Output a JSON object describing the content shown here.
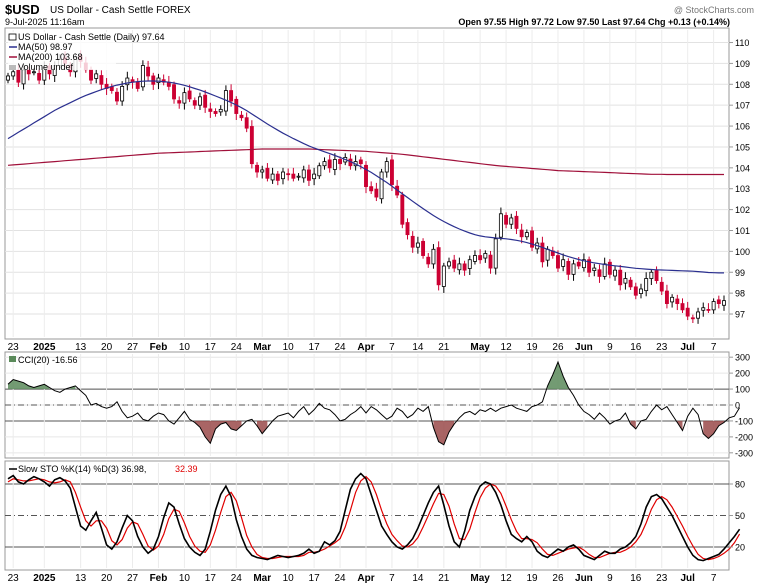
{
  "header": {
    "ticker": "$USD",
    "name": "US Dollar - Cash Settle FOREX",
    "datetime": "9-Jul-2025 11:16am",
    "watermark": "@ StockCharts.com",
    "quote": "Open 97.55  High 97.72  Low 97.50  Last 97.64  Chg +0.13 (+0.14%)"
  },
  "colors": {
    "up": "#000000",
    "down": "#cc0033",
    "ma50": "#2a2f8f",
    "ma200": "#a0103a",
    "cci_pos": "#5a8a5a",
    "cci_neg": "#9a4a4a",
    "sto_k": "#000000",
    "sto_d": "#e00000"
  },
  "chart_data": [
    {
      "type": "candlestick",
      "legend": {
        "main": "US Dollar - Cash Settle (Daily) 97.64",
        "ma50": "MA(50) 98.97",
        "ma200": "MA(200) 103.68",
        "volume": "Volume undef"
      },
      "ylim": [
        95.9,
        110.6
      ],
      "yticks": [
        97,
        98,
        99,
        100,
        101,
        102,
        103,
        104,
        105,
        106,
        107,
        108,
        109,
        110
      ],
      "x_labels": [
        "23",
        "2025",
        "13",
        "20",
        "27",
        "Feb",
        "10",
        "17",
        "24",
        "Mar",
        "10",
        "17",
        "24",
        "Apr",
        "7",
        "14",
        "21",
        "May",
        "12",
        "19",
        "26",
        "Jun",
        "9",
        "16",
        "23",
        "Jul",
        "7"
      ],
      "x_label_index": [
        1,
        7,
        14,
        19,
        24,
        29,
        34,
        39,
        44,
        49,
        54,
        59,
        64,
        69,
        74,
        79,
        84,
        91,
        96,
        101,
        106,
        111,
        116,
        121,
        126,
        131,
        136
      ],
      "close": [
        108.4,
        108.6,
        108.1,
        108.7,
        108.5,
        108.6,
        108.2,
        108.8,
        108.5,
        108.9,
        109.2,
        109.0,
        108.6,
        109.3,
        109.1,
        108.7,
        108.2,
        108.5,
        108.0,
        107.8,
        107.7,
        107.2,
        107.9,
        108.3,
        108.1,
        107.8,
        108.9,
        108.4,
        108.0,
        108.3,
        108.1,
        107.9,
        107.3,
        107.1,
        107.6,
        107.3,
        107.0,
        107.4,
        106.9,
        106.7,
        106.6,
        106.8,
        107.7,
        107.2,
        106.6,
        106.4,
        105.9,
        104.2,
        103.8,
        103.9,
        103.5,
        103.7,
        103.4,
        103.8,
        103.7,
        103.5,
        103.6,
        103.9,
        103.4,
        103.7,
        104.1,
        104.3,
        104.0,
        104.4,
        104.2,
        104.5,
        104.1,
        104.3,
        104.2,
        103.1,
        102.9,
        102.6,
        103.8,
        104.3,
        103.2,
        102.7,
        101.3,
        100.8,
        100.2,
        100.4,
        99.8,
        99.4,
        100.1,
        98.4,
        99.3,
        99.5,
        99.2,
        99.4,
        99.1,
        99.6,
        99.8,
        99.6,
        99.9,
        99.2,
        100.6,
        101.8,
        101.3,
        101.6,
        101.1,
        100.7,
        100.9,
        100.2,
        100.4,
        99.5,
        100.1,
        99.8,
        99.2,
        99.6,
        98.9,
        99.4,
        99.3,
        99.6,
        99.0,
        99.2,
        98.8,
        99.4,
        98.9,
        99.1,
        98.4,
        98.7,
        98.3,
        97.9,
        98.2,
        98.7,
        99.0,
        98.6,
        98.1,
        97.5,
        97.8,
        97.5,
        97.2,
        96.9,
        96.8,
        97.1,
        97.3,
        97.2,
        97.6,
        97.5,
        97.64
      ],
      "ma50": [
        105.4,
        105.55,
        105.7,
        105.85,
        106.0,
        106.15,
        106.3,
        106.45,
        106.6,
        106.75,
        106.88,
        107.0,
        107.12,
        107.24,
        107.36,
        107.47,
        107.56,
        107.65,
        107.74,
        107.82,
        107.9,
        107.96,
        108.01,
        108.06,
        108.1,
        108.13,
        108.15,
        108.16,
        108.16,
        108.15,
        108.13,
        108.1,
        108.06,
        108.01,
        107.95,
        107.88,
        107.8,
        107.72,
        107.63,
        107.54,
        107.44,
        107.34,
        107.24,
        107.13,
        107.01,
        106.88,
        106.74,
        106.58,
        106.42,
        106.26,
        106.1,
        105.95,
        105.8,
        105.66,
        105.53,
        105.4,
        105.28,
        105.16,
        105.05,
        104.95,
        104.86,
        104.77,
        104.68,
        104.59,
        104.5,
        104.4,
        104.3,
        104.18,
        104.06,
        103.92,
        103.78,
        103.62,
        103.46,
        103.3,
        103.12,
        102.94,
        102.76,
        102.58,
        102.4,
        102.22,
        102.05,
        101.88,
        101.72,
        101.57,
        101.43,
        101.3,
        101.18,
        101.07,
        100.97,
        100.88,
        100.8,
        100.74,
        100.7,
        100.67,
        100.64,
        100.62,
        100.6,
        100.57,
        100.53,
        100.48,
        100.42,
        100.35,
        100.27,
        100.19,
        100.1,
        100.01,
        99.92,
        99.83,
        99.75,
        99.68,
        99.61,
        99.55,
        99.5,
        99.45,
        99.41,
        99.37,
        99.34,
        99.31,
        99.28,
        99.25,
        99.22,
        99.19,
        99.17,
        99.15,
        99.13,
        99.12,
        99.11,
        99.1,
        99.09,
        99.08,
        99.07,
        99.06,
        99.05,
        99.03,
        99.01,
        98.99,
        98.98,
        98.97,
        98.97
      ],
      "ma200": [
        104.12,
        104.14,
        104.16,
        104.18,
        104.2,
        104.22,
        104.24,
        104.26,
        104.28,
        104.3,
        104.32,
        104.34,
        104.36,
        104.38,
        104.4,
        104.42,
        104.44,
        104.46,
        104.48,
        104.5,
        104.52,
        104.54,
        104.56,
        104.58,
        104.6,
        104.62,
        104.64,
        104.66,
        104.68,
        104.7,
        104.71,
        104.72,
        104.73,
        104.74,
        104.75,
        104.76,
        104.77,
        104.78,
        104.79,
        104.8,
        104.81,
        104.82,
        104.83,
        104.84,
        104.85,
        104.86,
        104.87,
        104.88,
        104.89,
        104.9,
        104.9,
        104.9,
        104.9,
        104.9,
        104.9,
        104.9,
        104.9,
        104.9,
        104.9,
        104.89,
        104.88,
        104.87,
        104.86,
        104.85,
        104.84,
        104.83,
        104.82,
        104.81,
        104.8,
        104.79,
        104.77,
        104.75,
        104.73,
        104.71,
        104.69,
        104.67,
        104.65,
        104.62,
        104.59,
        104.56,
        104.53,
        104.5,
        104.47,
        104.44,
        104.41,
        104.38,
        104.35,
        104.32,
        104.29,
        104.26,
        104.23,
        104.2,
        104.17,
        104.14,
        104.11,
        104.09,
        104.07,
        104.05,
        104.03,
        104.01,
        103.99,
        103.97,
        103.95,
        103.93,
        103.91,
        103.89,
        103.87,
        103.86,
        103.85,
        103.84,
        103.83,
        103.82,
        103.81,
        103.8,
        103.79,
        103.78,
        103.77,
        103.76,
        103.75,
        103.74,
        103.73,
        103.72,
        103.71,
        103.7,
        103.69,
        103.69,
        103.69,
        103.68,
        103.68,
        103.68,
        103.68,
        103.68,
        103.68,
        103.68,
        103.68,
        103.68,
        103.68,
        103.68,
        103.68
      ]
    },
    {
      "type": "area",
      "legend": "CCI(20) -16.56",
      "ylim": [
        -320,
        320
      ],
      "yticks": [
        300,
        200,
        100,
        0,
        -100,
        -200,
        -300
      ],
      "reference_lines": [
        100,
        0,
        -100
      ],
      "values": [
        130,
        160,
        150,
        140,
        120,
        110,
        120,
        130,
        110,
        90,
        80,
        100,
        110,
        120,
        90,
        60,
        0,
        10,
        -10,
        -20,
        -10,
        20,
        -40,
        -80,
        -70,
        -50,
        -90,
        -100,
        -70,
        -50,
        -60,
        -100,
        -120,
        -80,
        -40,
        -90,
        -110,
        -140,
        -200,
        -240,
        -150,
        -120,
        -110,
        -150,
        -160,
        -130,
        -100,
        -90,
        -130,
        -180,
        -140,
        -100,
        -70,
        -60,
        -50,
        -80,
        -40,
        -10,
        -60,
        -30,
        10,
        -20,
        -30,
        -60,
        -100,
        -90,
        -60,
        -40,
        -10,
        -50,
        -10,
        -30,
        -60,
        -90,
        -70,
        -20,
        -40,
        -80,
        -60,
        -20,
        -40,
        -10,
        -140,
        -230,
        -250,
        -170,
        -120,
        -80,
        -50,
        -40,
        -60,
        -30,
        -40,
        -20,
        -40,
        -20,
        -10,
        0,
        -20,
        -30,
        -40,
        -10,
        0,
        20,
        120,
        190,
        270,
        180,
        110,
        60,
        0,
        -40,
        -60,
        -90,
        -50,
        -80,
        -120,
        -100,
        -90,
        -50,
        -120,
        -150,
        -100,
        -90,
        -40,
        0,
        -30,
        -10,
        -60,
        -110,
        -160,
        -70,
        -20,
        -60,
        -180,
        -210,
        -180,
        -130,
        -110,
        -80,
        -70,
        -16.56
      ],
      "values_note": ""
    },
    {
      "type": "line",
      "legend_k": "Slow STO %K(14) %D(3) 36.98,",
      "legend_d": "32.39",
      "ylim": [
        0,
        100
      ],
      "yticks": [
        80,
        50,
        20
      ],
      "reference_lines": [
        80,
        50,
        20
      ],
      "k": [
        85,
        88,
        82,
        80,
        84,
        87,
        85,
        82,
        78,
        84,
        86,
        83,
        76,
        58,
        40,
        36,
        45,
        53,
        38,
        22,
        18,
        25,
        38,
        50,
        45,
        30,
        20,
        14,
        18,
        30,
        48,
        62,
        58,
        42,
        28,
        20,
        15,
        12,
        18,
        35,
        55,
        70,
        78,
        68,
        46,
        30,
        18,
        12,
        10,
        9,
        8,
        10,
        12,
        11,
        10,
        11,
        12,
        14,
        18,
        14,
        16,
        25,
        22,
        26,
        35,
        55,
        75,
        85,
        90,
        85,
        70,
        55,
        40,
        32,
        25,
        20,
        18,
        22,
        28,
        38,
        50,
        62,
        72,
        78,
        60,
        40,
        25,
        20,
        35,
        55,
        68,
        78,
        82,
        80,
        72,
        60,
        45,
        32,
        28,
        25,
        30,
        25,
        16,
        12,
        10,
        14,
        18,
        16,
        20,
        22,
        18,
        12,
        10,
        8,
        12,
        16,
        14,
        14,
        18,
        20,
        24,
        30,
        42,
        58,
        68,
        70,
        66,
        58,
        50,
        40,
        30,
        20,
        12,
        8,
        7,
        9,
        11,
        13,
        18,
        24,
        30,
        36.98
      ],
      "d": [
        82,
        85,
        84,
        83,
        83,
        84,
        85,
        84,
        82,
        81,
        82,
        84,
        82,
        72,
        58,
        45,
        40,
        45,
        45,
        38,
        26,
        22,
        27,
        38,
        44,
        42,
        32,
        21,
        17,
        21,
        32,
        47,
        56,
        54,
        43,
        30,
        21,
        16,
        15,
        22,
        36,
        53,
        68,
        72,
        64,
        48,
        31,
        20,
        13,
        10,
        9,
        9,
        10,
        11,
        11,
        11,
        11,
        12,
        15,
        15,
        16,
        18,
        21,
        24,
        28,
        39,
        55,
        72,
        83,
        87,
        82,
        70,
        55,
        42,
        32,
        26,
        21,
        20,
        23,
        29,
        39,
        50,
        61,
        71,
        70,
        59,
        42,
        28,
        27,
        37,
        53,
        67,
        76,
        80,
        78,
        71,
        59,
        46,
        35,
        28,
        28,
        27,
        24,
        18,
        13,
        12,
        14,
        16,
        18,
        19,
        20,
        17,
        13,
        10,
        10,
        12,
        14,
        15,
        15,
        17,
        20,
        25,
        32,
        43,
        56,
        65,
        68,
        65,
        58,
        49,
        40,
        30,
        21,
        13,
        9,
        8,
        9,
        11,
        14,
        18,
        24,
        32.39
      ]
    }
  ]
}
